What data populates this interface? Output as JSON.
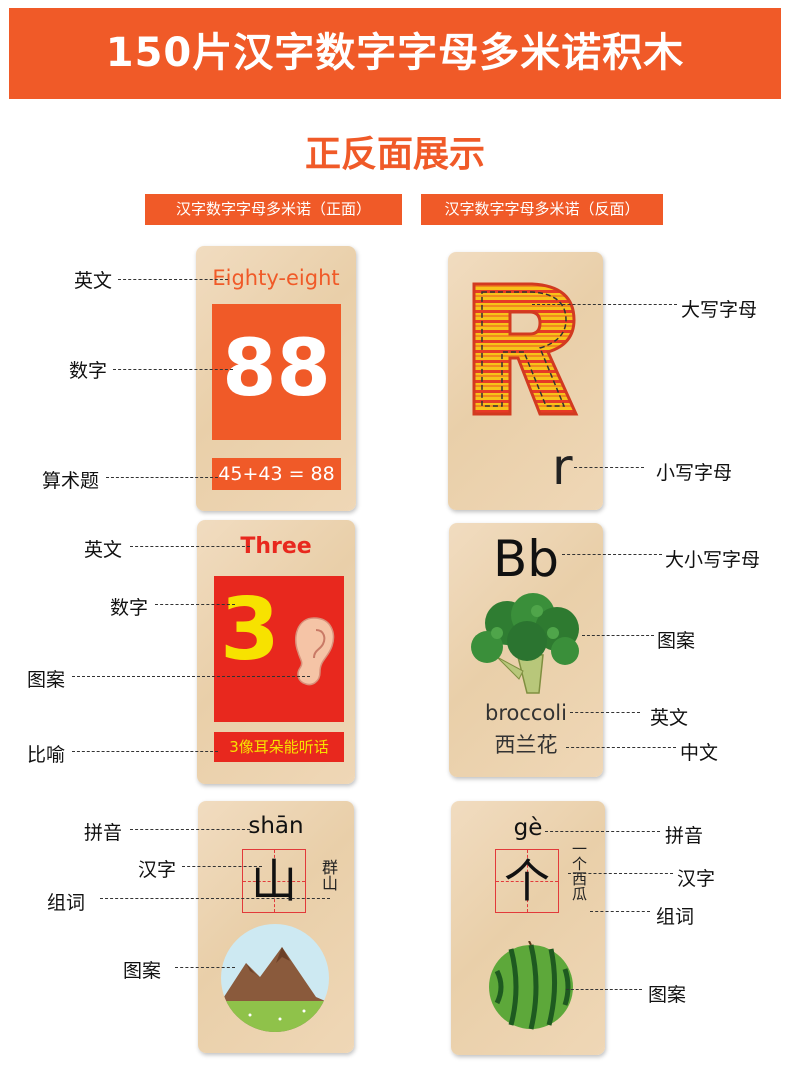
{
  "header": {
    "title": "150片汉字数字字母多米诺积木"
  },
  "section": {
    "title": "正反面展示"
  },
  "tags": {
    "front": "汉字数字字母多米诺（正面）",
    "back": "汉字数字字母多米诺（反面）"
  },
  "cards": {
    "card1": {
      "english": "Eighty-eight",
      "number": "88",
      "equation": "45+43 = 88"
    },
    "card2": {
      "upper": "R",
      "lower": "r"
    },
    "card3": {
      "english": "Three",
      "number": "3",
      "simile": "3像耳朵能听话"
    },
    "card4": {
      "letters": "Bb",
      "english": "broccoli",
      "chinese": "西兰花"
    },
    "card5": {
      "pinyin": "shān",
      "hanzi": "山",
      "words": "群山"
    },
    "card6": {
      "pinyin": "gè",
      "hanzi": "个",
      "words": "一个西瓜"
    }
  },
  "labels": {
    "c1_english": "英文",
    "c1_number": "数字",
    "c1_math": "算术题",
    "c2_upper": "大写字母",
    "c2_lower": "小写字母",
    "c3_english": "英文",
    "c3_number": "数字",
    "c3_pattern": "图案",
    "c3_simile": "比喻",
    "c4_letters": "大小写字母",
    "c4_pattern": "图案",
    "c4_english": "英文",
    "c4_chinese": "中文",
    "c5_pinyin": "拼音",
    "c5_hanzi": "汉字",
    "c5_words": "组词",
    "c5_pattern": "图案",
    "c6_pinyin": "拼音",
    "c6_hanzi": "汉字",
    "c6_words": "组词",
    "c6_pattern": "图案"
  },
  "colors": {
    "accent": "#f05a28",
    "red": "#e8281e",
    "yellow": "#f7e200",
    "wood": "#eed5b3"
  },
  "icons": {
    "c3": "ear-icon",
    "c4": "broccoli-icon",
    "c5": "mountain-icon",
    "c6": "watermelon-icon"
  }
}
